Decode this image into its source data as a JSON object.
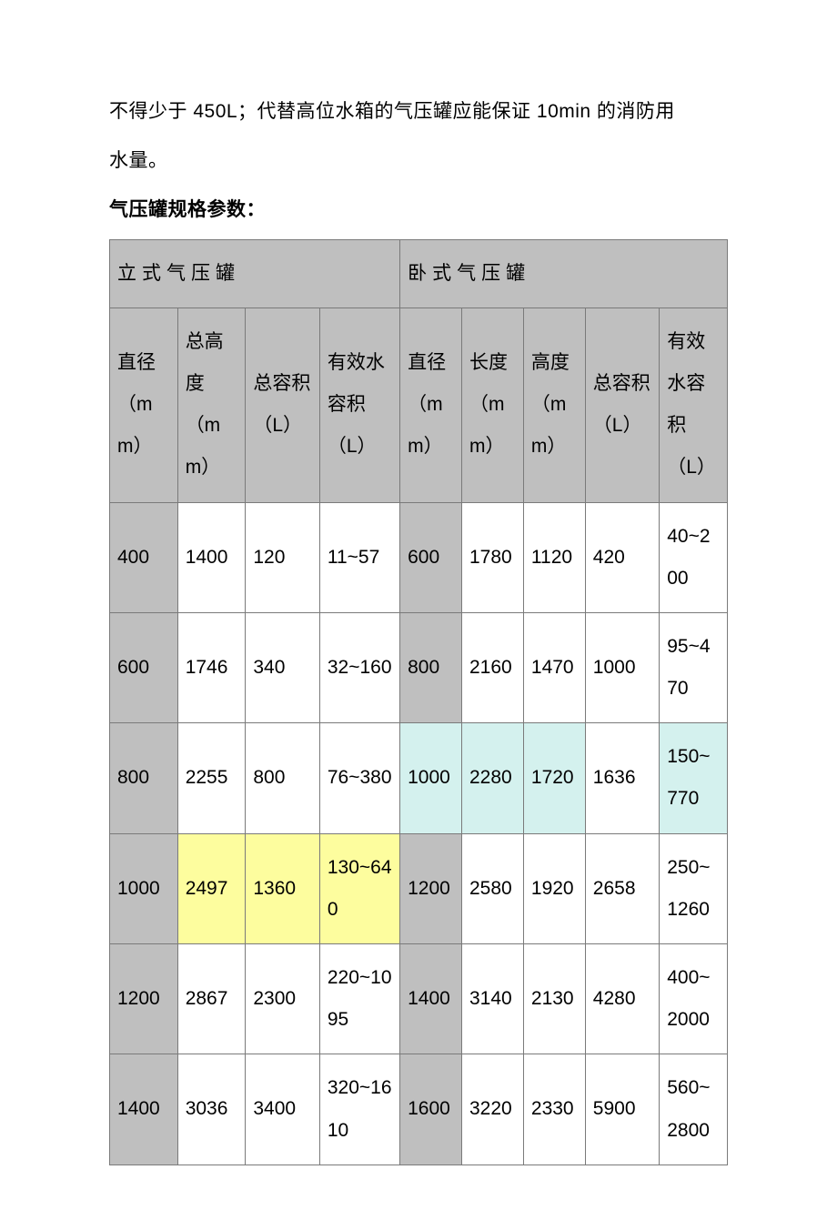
{
  "intro": {
    "line1": "不得少于 450L；代替高位水箱的气压罐应能保证 10min 的消防用",
    "line2": "水量。"
  },
  "tableTitle": "气压罐规格参数：",
  "table": {
    "colors": {
      "headerGray": "#bfbfbf",
      "highlightYellow": "#fdfd9e",
      "highlightCyan": "#d4f1ee",
      "borderColor": "#7a7a7a",
      "textColor": "#000000",
      "background": "#ffffff"
    },
    "fontSize": 21,
    "groupHeaders": {
      "left": "立式气压罐",
      "right": "卧式气压罐"
    },
    "columnHeaders": {
      "c0": "直径（mm）",
      "c1": "总高度（mm）",
      "c2": "总容积（L）",
      "c3": "有效水容积（L）",
      "c4": "直径（mm）",
      "c5": "长度（mm）",
      "c6": "高度（mm）",
      "c7": "总容积（L）",
      "c8": "有效水容积（L）"
    },
    "columnWidths": [
      "11%",
      "11%",
      "12%",
      "13%",
      "10%",
      "10%",
      "10%",
      "12%",
      "11%"
    ],
    "rows": [
      {
        "cells": [
          "400",
          "1400",
          "120",
          "11~57",
          "600",
          "1780",
          "1120",
          "420",
          "40~200"
        ],
        "style": [
          "gray",
          "none",
          "none",
          "none",
          "gray",
          "none",
          "none",
          "none",
          "none"
        ]
      },
      {
        "cells": [
          "600",
          "1746",
          "340",
          "32~160",
          "800",
          "2160",
          "1470",
          "1000",
          "95~470"
        ],
        "style": [
          "gray",
          "none",
          "none",
          "none",
          "gray",
          "none",
          "none",
          "none",
          "none"
        ]
      },
      {
        "cells": [
          "800",
          "2255",
          "800",
          "76~380",
          "1000",
          "2280",
          "1720",
          "1636",
          "150~770"
        ],
        "style": [
          "gray",
          "none",
          "none",
          "none",
          "cyan",
          "cyan",
          "cyan",
          "none",
          "cyan"
        ]
      },
      {
        "cells": [
          "1000",
          "2497",
          "1360",
          "130~640",
          "1200",
          "2580",
          "1920",
          "2658",
          "250~1260"
        ],
        "style": [
          "gray",
          "yellow",
          "yellow",
          "yellow",
          "gray",
          "none",
          "none",
          "none",
          "none"
        ]
      },
      {
        "cells": [
          "1200",
          "2867",
          "2300",
          "220~1095",
          "1400",
          "3140",
          "2130",
          "4280",
          "400~2000"
        ],
        "style": [
          "gray",
          "none",
          "none",
          "none",
          "gray",
          "none",
          "none",
          "none",
          "none"
        ]
      },
      {
        "cells": [
          "1400",
          "3036",
          "3400",
          "320~1610",
          "1600",
          "3220",
          "2330",
          "5900",
          "560~2800"
        ],
        "style": [
          "gray",
          "none",
          "none",
          "none",
          "gray",
          "none",
          "none",
          "none",
          "none"
        ]
      }
    ]
  }
}
